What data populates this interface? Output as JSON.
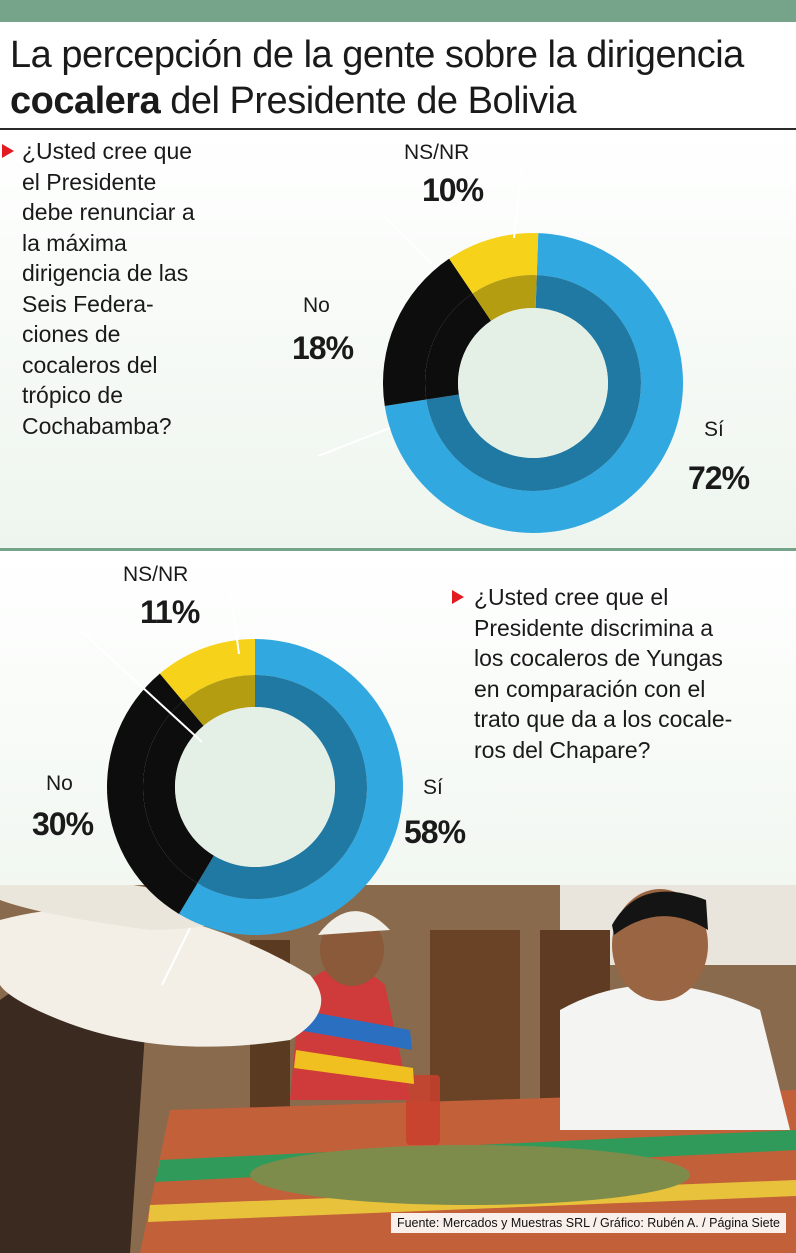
{
  "title": {
    "line1": "La percepción de la gente sobre la dirigencia",
    "bold": "cocalera",
    "rest": " del Presidente de Bolivia"
  },
  "colors": {
    "si": "#31a8e0",
    "si_inner": "#1f79a3",
    "no": "#0d0d0d",
    "nsnr": "#f6d21a",
    "nsnr_inner": "#b59d12",
    "center": "#e4efe6",
    "accent": "#e21b23",
    "band": "#76a48b"
  },
  "chart_data": [
    {
      "type": "pie",
      "question": "¿Usted cree que el Presidente debe renunciar a la máxima dirigencia de las Seis Federa- ciones de cocaleros del trópico de Cochabamba?",
      "categories": [
        "Sí",
        "No",
        "NS/NR"
      ],
      "values": [
        72,
        18,
        10
      ],
      "value_labels": [
        "72%",
        "18%",
        "10%"
      ],
      "unit": "%"
    },
    {
      "type": "pie",
      "question": "¿Usted cree que el Presidente discrimina a los cocaleros de Yungas en comparación con el trato que da a los cocale- ros del Chapare?",
      "categories": [
        "Sí",
        "No",
        "NS/NR"
      ],
      "values": [
        58,
        30,
        11
      ],
      "value_labels": [
        "58%",
        "30%",
        "11%"
      ],
      "unit": "%"
    }
  ],
  "q1_lines": [
    "¿Usted cree que",
    "el Presidente",
    "debe renunciar a",
    "la máxima",
    "dirigencia de las",
    "Seis Federa-",
    "ciones de",
    "cocaleros del",
    "trópico de",
    "Cochabamba?"
  ],
  "q2_lines": [
    "¿Usted cree que el",
    "Presidente discrimina a",
    "los cocaleros de Yungas",
    "en comparación con el",
    "trato que da a los cocale-",
    "ros del Chapare?"
  ],
  "source": "Fuente: Mercados y Muestras SRL / Gráfico: Rubén A. / Página Siete"
}
